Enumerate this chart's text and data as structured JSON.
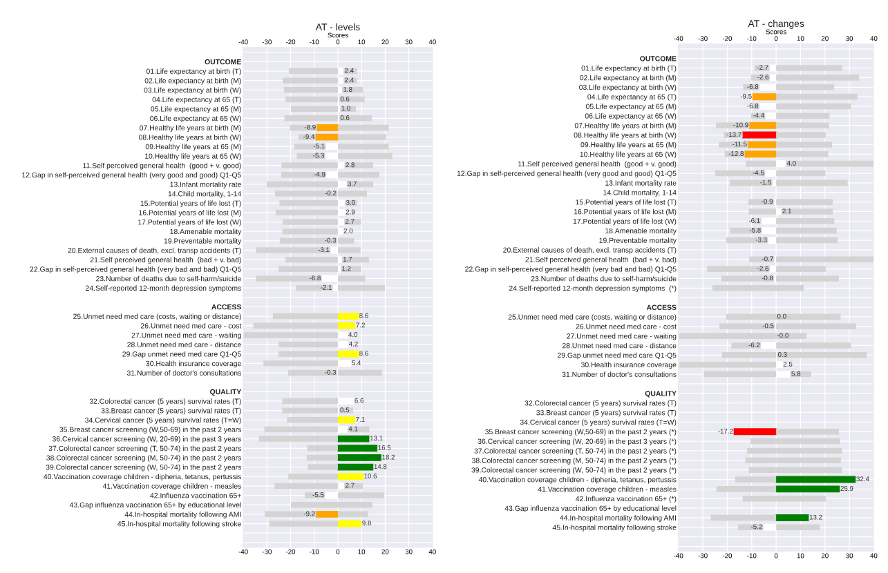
{
  "chart_data": [
    {
      "type": "bar",
      "orientation": "horizontal",
      "stacked": true,
      "title": "AT - levels",
      "x2label": "Scores",
      "grid": true,
      "categories": [
        null,
        "OUTCOME",
        "01.Life expectancy at birth (T)",
        "02.Life expectancy at birth (M)",
        "03.Life expectancy at birth (W)",
        "04.Life expectancy at 65 (T)",
        "05.Life expectancy at 65 (M)",
        "06.Life expectancy at 65 (W)",
        "07.Healthy life years at birth (M)",
        "08.Healthy life years at birth (W)",
        "09.Healthy life years at 65 (M)",
        "10.Healthy life years at 65 (W)",
        "11.Self perceived general health  (good + v. good)",
        "12.Gap in self-perceived general health (very good and good) Q1-Q5",
        "13.Infant mortality rate",
        "14.Child mortality, 1-14",
        "15.Potential years of life lost (T)",
        "16.Potential years of life lost (M)",
        "17.Potential years of life lost (W)",
        "18.Amenable mortality",
        "19.Preventable mortality",
        "20.External causes of death, excl. transp accidents (T)",
        "21.Self perceived general health  (bad + v. bad)",
        "22.Gap in self-perceived general health (very bad and bad) Q1-Q5",
        "23.Number of deaths due to self-harm/suicide",
        "24.Self-reported 12-month depression symptoms",
        null,
        "ACCESS",
        "25.Unmet need med care (costs, waiting or distance)",
        "26.Unmet need med care - cost",
        "27.Unmet need med care - waiting",
        "28.Unmet need med care - distance",
        "29.Gap unmet need med care Q1-Q5",
        "30.Health insurance coverage",
        "31.Number of doctor's consultations",
        null,
        "QUALITY",
        "32.Colorectal cancer (5 years) survival rates (T)",
        "33.Breast cancer (5 years) survival rates (T)",
        "34.Cervical cancer (5 years) survival rates (T=W)",
        "35.Breast cancer screening (W,50-69) in the past 2 years",
        "36.Cervical cancer screening (W, 20-69) in the past 3 years",
        "37.Colorectal cancer screening (T, 50-74) in the past 2 years",
        "38.Colorectal cancer screening (M, 50-74) in the past 2 years",
        "39.Colorectal cancer screening (W, 50-74) in the past 2 years",
        "40.Vaccination coverage children - dipheria, tetanus, pertussis",
        "41.Vaccination coverage children - measles",
        "42.Influenza vaccination 65+",
        "43.Gap influenza vaccination 65+ by educational level",
        "44.In-hospital mortality following AMI",
        "45.In-hospital mortality following stroke",
        null,
        null
      ],
      "series": [
        {
          "colors": [
            null,
            null,
            "#ffffff",
            "#ffffff",
            "#ffffff",
            "#ffffff",
            "#ffffff",
            "#ffffff",
            "#ffa500",
            "#ffa500",
            "#ffffff",
            "#ffffff",
            "#ffffff",
            "#ffffff",
            "#ffffff",
            "#ffffff",
            "#ffffff",
            "#ffffff",
            "#ffffff",
            "#ffffff",
            "#ffffff",
            "#ffffff",
            "#ffffff",
            "#ffffff",
            "#ffffff",
            "#ffffff",
            null,
            null,
            "#ffff00",
            "#ffff00",
            "#ffffff",
            "#ffffff",
            "#ffff00",
            "#ffffff",
            "#ffffff",
            null,
            null,
            "#ffffff",
            "#ffffff",
            "#ffff00",
            "#ffffff",
            "#008000",
            "#008000",
            "#008000",
            "#008000",
            "#ffff00",
            "#ffffff",
            "#ffffff",
            null,
            "#ffa500",
            "#ffff00",
            null,
            null
          ],
          "values": [
            null,
            null,
            2.4,
            2.4,
            1.8,
            0.6,
            1.0,
            0.6,
            -8.9,
            -9.4,
            -5.1,
            -5.3,
            2.8,
            -4.9,
            3.7,
            -0.2,
            3.0,
            2.9,
            2.7,
            2.0,
            -0.3,
            -3.1,
            1.7,
            1.2,
            -6.8,
            -2.1,
            null,
            null,
            8.6,
            7.2,
            4.0,
            4.2,
            8.6,
            5.4,
            -0.3,
            null,
            null,
            6.6,
            0.5,
            7.1,
            4.1,
            13.1,
            16.5,
            18.2,
            14.8,
            10.6,
            2.7,
            -5.5,
            null,
            -9.2,
            9.8,
            null,
            null
          ],
          "value_labels": [
            null,
            null,
            "2.4",
            "2.4",
            "1.8",
            "0.6",
            "1.0",
            "0.6",
            "-8.9",
            "-9.4",
            "-5.1",
            "-5.3",
            "2.8",
            "-4.9",
            "3.7",
            "-0.2",
            "3.0",
            "2.9",
            "2.7",
            "2.0",
            "-0.3",
            "-3.1",
            "1.7",
            "1.2",
            "-6.8",
            "-2.1",
            null,
            null,
            "8.6",
            "7.2",
            "4.0",
            "4.2",
            "8.6",
            "5.4",
            "-0.3",
            null,
            null,
            "6.6",
            "0.5",
            "7.1",
            "4.1",
            "13.1",
            "16.5",
            "18.2",
            "14.8",
            "10.6",
            "2.7",
            "-5.5",
            null,
            "-9.2",
            "9.8",
            null,
            null
          ]
        },
        {
          "color": "#d4d4d4",
          "values": [
            null,
            null,
            -20.7,
            -23.3,
            -22.8,
            -22.1,
            -19.9,
            -22.6,
            -11.5,
            -7.3,
            -13.3,
            -12.1,
            -23.8,
            -19.1,
            -30.1,
            -26.4,
            -24.7,
            -26.3,
            -23.3,
            -23.5,
            -24.3,
            -31.5,
            -22.1,
            -25.1,
            -27.8,
            -15.7,
            null,
            null,
            -27.5,
            -35.7,
            -40,
            -25.1,
            -25.1,
            -31.5,
            -20.8,
            null,
            null,
            -23.5,
            -23.5,
            -21.5,
            -31.1,
            -33.4,
            -13.0,
            -13.2,
            -12.7,
            -21.0,
            -26.8,
            -8.5,
            -19.8,
            -21.7,
            -29.0,
            null,
            null
          ]
        },
        {
          "color": "#d4d4d4",
          "values": [
            null,
            null,
            5.7,
            5.7,
            8.8,
            10.7,
            6.6,
            13.8,
            21.5,
            20.4,
            21.5,
            23.0,
            12.1,
            17.5,
            11.2,
            12.3,
            5.0,
            null,
            7.1,
            null,
            6.9,
            9.6,
            11.4,
            8.6,
            11.6,
            19.9,
            null,
            null,
            null,
            null,
            null,
            null,
            null,
            null,
            18.7,
            null,
            null,
            null,
            5.9,
            null,
            9.2,
            null,
            null,
            null,
            null,
            null,
            7.9,
            19.5,
            14.6,
            12.8,
            null,
            null,
            null
          ]
        }
      ],
      "xlim": [
        -40,
        40
      ],
      "xticks": [
        -40,
        -30,
        -20,
        -10,
        0,
        10,
        20,
        30,
        40
      ],
      "x2lim": [
        -40,
        40
      ],
      "x2ticks": [
        -40,
        -30,
        -20,
        -10,
        0,
        10,
        20,
        30,
        40
      ]
    },
    {
      "type": "bar",
      "orientation": "horizontal",
      "stacked": true,
      "title": "AT - changes",
      "x2label": "Scores",
      "grid": true,
      "categories": [
        null,
        "OUTCOME",
        "01.Life expectancy at birth (T)",
        "02.Life expectancy at birth (M)",
        "03.Life expectancy at birth (W)",
        "04.Life expectancy at 65 (T)",
        "05.Life expectancy at 65 (M)",
        "06.Life expectancy at 65 (W)",
        "07.Healthy life years at birth (M)",
        "08.Healthy life years at birth (W)",
        "09.Healthy life years at 65 (M)",
        "10.Healthy life years at 65 (W)",
        "11.Self perceived general health  (good + v. good)",
        "12.Gap in self-perceived general health (very good and good) Q1-Q5",
        "13.Infant mortality rate",
        "14.Child mortality, 1-14",
        "15.Potential years of life lost (T)",
        "16.Potential years of life lost (M)",
        "17.Potential years of life lost (W)",
        "18.Amenable mortality",
        "19.Preventable mortality",
        "20.External causes of death, excl. transp accidents (T)",
        "21.Self perceived general health  (bad + v. bad)",
        "22.Gap in self-perceived general health (very bad and bad) Q1-Q5",
        "23.Number of deaths due to self-harm/suicide",
        "24.Self-reported 12-month depression symptoms  (*)",
        null,
        "ACCESS",
        "25.Unmet need med care (costs, waiting or distance)",
        "26.Unmet need med care - cost",
        "27.Unmet need med care - waiting",
        "28.Unmet need med care - distance",
        "29.Gap unmet need med care Q1-Q5",
        "30.Health insurance coverage",
        "31.Number of doctor's consultations",
        null,
        "QUALITY",
        "32.Colorectal cancer (5 years) survival rates (T)",
        "33.Breast cancer (5 years) survival rates (T)",
        "34.Cervical cancer (5 years) survival rates (T=W)",
        "35.Breast cancer screening (W,50-69) in the past 2 years (*)",
        "36.Cervical cancer screening (W, 20-69) in the past 3 years (*)",
        "37.Colorectal cancer screening (T, 50-74) in the past 2 years (*)",
        "38.Colorectal cancer screening (M, 50-74) in the past 2 years (*)",
        "39.Colorectal cancer screening (W, 50-74) in the past 2 years (*)",
        "40.Vaccination coverage children - dipheria, tetanus, pertussis",
        "41.Vaccination coverage children - measles",
        "42.Influenza vaccination 65+ (*)",
        "43.Gap influenza vaccination 65+ by educational level",
        "44.In-hospital mortality following AMI",
        "45.In-hospital mortality following stroke",
        null,
        null
      ],
      "series": [
        {
          "colors": [
            null,
            null,
            "#ffffff",
            "#ffffff",
            "#ffffff",
            "#ffa500",
            "#ffffff",
            "#ffffff",
            "#ffa500",
            "#ff0000",
            "#ffa500",
            "#ffa500",
            "#ffffff",
            "#ffffff",
            "#ffffff",
            null,
            "#ffffff",
            "#ffffff",
            "#ffffff",
            "#ffffff",
            "#ffffff",
            null,
            "#ffffff",
            "#ffffff",
            "#ffffff",
            null,
            null,
            null,
            "#ffffff",
            "#ffffff",
            "#ffffff",
            "#ffffff",
            "#ffffff",
            "#ffffff",
            "#ffffff",
            null,
            null,
            null,
            null,
            null,
            "#ff0000",
            null,
            null,
            null,
            null,
            "#008000",
            "#008000",
            null,
            null,
            "#008000",
            "#ffffff",
            null,
            null
          ],
          "values": [
            null,
            null,
            -2.7,
            -2.6,
            -6.8,
            -9.5,
            -6.8,
            -4.4,
            -10.9,
            -13.7,
            -11.5,
            -12.8,
            4.0,
            -4.5,
            -1.5,
            null,
            -0.9,
            2.1,
            -6.1,
            -5.8,
            -3.3,
            null,
            -0.7,
            -2.6,
            -0.8,
            null,
            null,
            null,
            0.0,
            -0.5,
            -0.0,
            -6.2,
            0.3,
            2.5,
            5.8,
            null,
            null,
            null,
            null,
            null,
            -17.2,
            null,
            null,
            null,
            null,
            32.4,
            25.9,
            null,
            null,
            13.2,
            -5.2,
            null,
            null
          ],
          "value_labels": [
            null,
            null,
            "-2.7",
            "-2.6",
            "-6.8",
            "-9.5",
            "-6.8",
            "-4.4",
            "-10.9",
            "-13.7",
            "-11.5",
            "-12.8",
            "4.0",
            "-4.5",
            "-1.5",
            null,
            "-0.9",
            "2.1",
            "-6.1",
            "-5.8",
            "-3.3",
            null,
            "-0.7",
            "-2.6",
            "-0.8",
            null,
            null,
            null,
            "0.0",
            "-0.5",
            "-0.0",
            "-6.2",
            "0.3",
            "2.5",
            "5.8",
            null,
            null,
            null,
            null,
            null,
            "-17.2",
            null,
            null,
            null,
            null,
            "32.4",
            "25.9",
            null,
            null,
            "13.2",
            "-5.2",
            null,
            null
          ]
        },
        {
          "color": "#d4d4d4",
          "values": [
            null,
            null,
            -6.1,
            -7.6,
            -6.7,
            null,
            -2.9,
            -5.8,
            -13.7,
            -7.7,
            -12.0,
            -8.3,
            -12.3,
            -20.4,
            -17.5,
            null,
            -10.5,
            -11.2,
            -3.0,
            -13.1,
            -17.1,
            null,
            -10.3,
            -25.6,
            -21.7,
            -26.1,
            null,
            null,
            -20.4,
            -22.7,
            -39.7,
            -12.1,
            -22.2,
            -39.7,
            -29.6,
            null,
            null,
            null,
            null,
            null,
            null,
            -10.5,
            -11.9,
            -12.6,
            -11.2,
            -16.8,
            -24.4,
            -13.7,
            null,
            -26.8,
            -10.4,
            null,
            null
          ]
        },
        {
          "color": "#d4d4d4",
          "values": [
            null,
            null,
            27.1,
            34.0,
            23.8,
            33.3,
            30.7,
            21.9,
            21.7,
            20.3,
            22.9,
            21.3,
            36.0,
            20.2,
            29.3,
            null,
            23.2,
            21.1,
            23.8,
            24.8,
            25.2,
            null,
            40,
            20.3,
            25.7,
            11.3,
            null,
            null,
            26.4,
            32.8,
            12.5,
            30.7,
            36.8,
            null,
            8.6,
            null,
            null,
            null,
            null,
            null,
            25.7,
            26.2,
            27.0,
            26.5,
            27.0,
            null,
            null,
            20.3,
            null,
            null,
            17.9,
            null,
            null
          ]
        }
      ],
      "xlim": [
        -40,
        40
      ],
      "xticks": [
        -40,
        -30,
        -20,
        -10,
        0,
        10,
        20,
        30,
        40
      ],
      "x2lim": [
        -40,
        40
      ],
      "x2ticks": [
        -40,
        -30,
        -20,
        -10,
        0,
        10,
        20,
        30,
        40
      ]
    }
  ]
}
